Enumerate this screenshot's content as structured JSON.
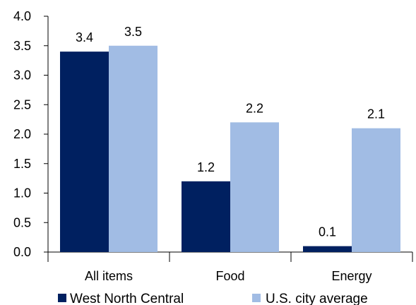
{
  "chart_data": {
    "type": "bar",
    "title": "",
    "xlabel": "",
    "ylabel": "",
    "ylim": [
      0,
      4.0
    ],
    "yticks": [
      "0.0",
      "0.5",
      "1.0",
      "1.5",
      "2.0",
      "2.5",
      "3.0",
      "3.5",
      "4.0"
    ],
    "categories": [
      "All items",
      "Food",
      "Energy"
    ],
    "series": [
      {
        "name": "West North Central",
        "values": [
          3.4,
          1.2,
          0.1
        ],
        "labels": [
          "3.4",
          "1.2",
          "0.1"
        ],
        "color": "#002060"
      },
      {
        "name": "U.S. city average",
        "values": [
          3.5,
          2.2,
          2.1
        ],
        "labels": [
          "3.5",
          "2.2",
          "2.1"
        ],
        "color": "#A1BCE4"
      }
    ],
    "grid": false,
    "legend_position": "bottom"
  }
}
